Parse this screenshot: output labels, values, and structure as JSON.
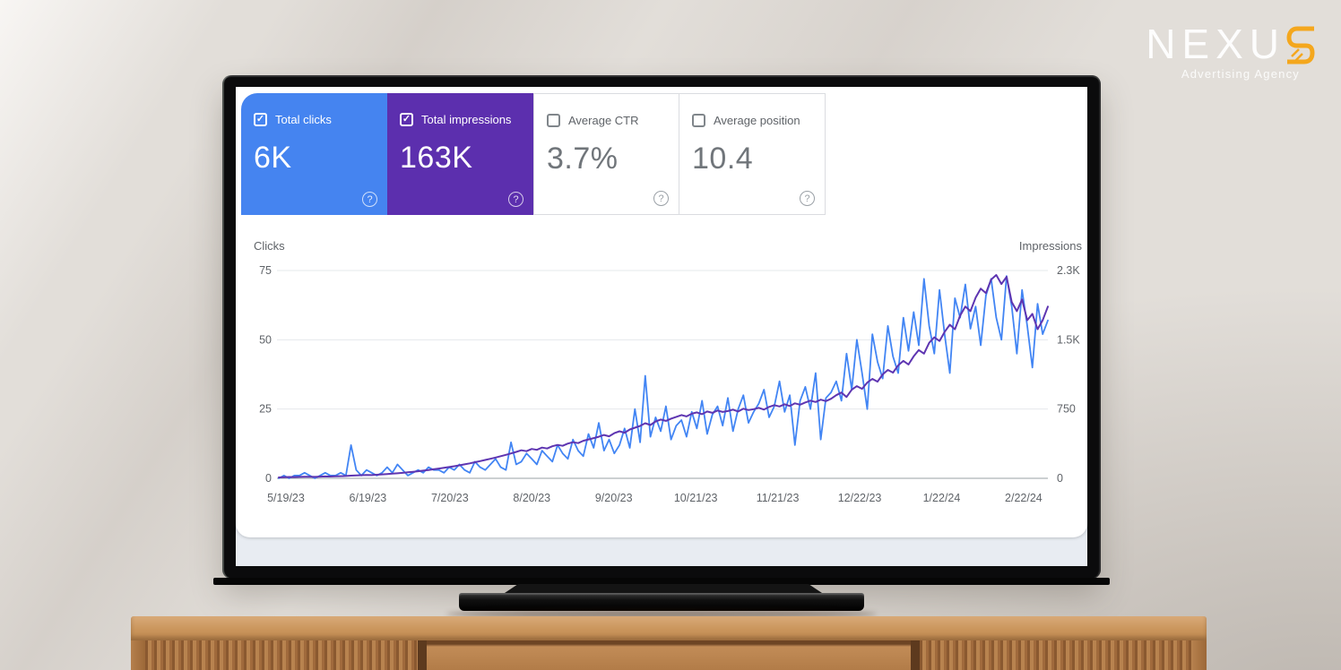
{
  "logo": {
    "name_prefix": "NEXU",
    "logo_letter": "S",
    "tagline": "Advertising Agency",
    "accent_color": "#F4A71D"
  },
  "icons": {
    "check": "✓",
    "help": "?"
  },
  "summary_cards": [
    {
      "label": "Total clicks",
      "value": "6K",
      "checked": true,
      "bg": "#4584f0",
      "text_color": "#ffffff"
    },
    {
      "label": "Total impressions",
      "value": "163K",
      "checked": true,
      "bg": "#5c2fae",
      "text_color": "#ffffff"
    },
    {
      "label": "Average CTR",
      "value": "3.7%",
      "checked": false,
      "bg": "#ffffff",
      "text_color": "#70757a"
    },
    {
      "label": "Average position",
      "value": "10.4",
      "checked": false,
      "bg": "#ffffff",
      "text_color": "#70757a"
    }
  ],
  "chart_data": {
    "type": "line",
    "grid": true,
    "legend": "none",
    "y_left": {
      "label": "Clicks",
      "ticks": [
        "75",
        "50",
        "25",
        "0"
      ],
      "max": 75
    },
    "y_right": {
      "label": "Impressions",
      "ticks": [
        "2.3K",
        "1.5K",
        "750",
        "0"
      ],
      "max": 2300
    },
    "x_ticks": [
      "5/19/23",
      "6/19/23",
      "7/20/23",
      "8/20/23",
      "9/20/23",
      "10/21/23",
      "11/21/23",
      "12/22/23",
      "1/22/24",
      "2/22/24"
    ],
    "series": [
      {
        "name": "Total clicks",
        "axis": "left",
        "color": "#4285f4",
        "width": 1.8,
        "values": [
          0,
          1,
          0,
          1,
          1,
          2,
          1,
          0,
          1,
          2,
          1,
          1,
          2,
          1,
          12,
          3,
          1,
          3,
          2,
          1,
          2,
          4,
          2,
          5,
          3,
          1,
          2,
          3,
          2,
          4,
          3,
          3,
          2,
          4,
          3,
          5,
          3,
          2,
          6,
          4,
          3,
          5,
          7,
          4,
          3,
          13,
          5,
          6,
          9,
          7,
          5,
          10,
          8,
          6,
          12,
          9,
          7,
          14,
          10,
          8,
          16,
          11,
          20,
          10,
          14,
          9,
          12,
          18,
          11,
          25,
          13,
          37,
          15,
          22,
          17,
          26,
          14,
          19,
          21,
          15,
          24,
          18,
          28,
          16,
          23,
          26,
          19,
          29,
          17,
          25,
          30,
          20,
          24,
          27,
          32,
          22,
          26,
          35,
          24,
          30,
          12,
          28,
          33,
          25,
          38,
          14,
          29,
          31,
          35,
          28,
          45,
          32,
          50,
          38,
          25,
          52,
          42,
          36,
          55,
          44,
          38,
          58,
          46,
          60,
          48,
          72,
          55,
          45,
          68,
          52,
          38,
          65,
          58,
          70,
          54,
          62,
          48,
          66,
          72,
          58,
          50,
          73,
          62,
          45,
          68,
          55,
          40,
          63,
          52,
          57
        ]
      },
      {
        "name": "Total impressions",
        "axis": "right",
        "color": "#5e35b1",
        "width": 2,
        "values": [
          10,
          12,
          15,
          14,
          16,
          18,
          17,
          16,
          19,
          21,
          20,
          22,
          24,
          26,
          30,
          32,
          35,
          38,
          36,
          40,
          44,
          48,
          52,
          56,
          60,
          66,
          72,
          78,
          85,
          92,
          100,
          108,
          116,
          125,
          134,
          144,
          155,
          166,
          178,
          190,
          203,
          216,
          230,
          245,
          260,
          276,
          292,
          310,
          300,
          325,
          315,
          340,
          330,
          355,
          370,
          360,
          385,
          400,
          390,
          415,
          430,
          445,
          460,
          480,
          465,
          500,
          520,
          505,
          540,
          560,
          580,
          610,
          590,
          630,
          650,
          635,
          660,
          680,
          700,
          685,
          715,
          730,
          710,
          740,
          725,
          750,
          735,
          745,
          760,
          740,
          770,
          755,
          765,
          780,
          760,
          790,
          810,
          795,
          820,
          800,
          830,
          815,
          840,
          860,
          845,
          870,
          855,
          880,
          920,
          950,
          900,
          980,
          1020,
          990,
          1060,
          1100,
          1070,
          1150,
          1200,
          1170,
          1250,
          1300,
          1260,
          1350,
          1420,
          1380,
          1500,
          1560,
          1520,
          1620,
          1700,
          1650,
          1800,
          1900,
          1850,
          2000,
          2100,
          2050,
          2200,
          2250,
          2150,
          2230,
          1950,
          1850,
          1980,
          1750,
          1820,
          1650,
          1750,
          1900
        ]
      }
    ]
  }
}
